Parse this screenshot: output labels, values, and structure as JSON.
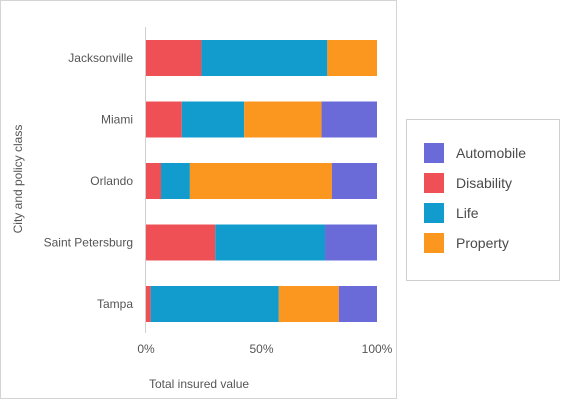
{
  "chart_data": {
    "type": "bar",
    "orientation": "horizontal",
    "stacked": "percent",
    "categories": [
      "Jacksonville",
      "Miami",
      "Orlando",
      "Saint Petersburg",
      "Tampa"
    ],
    "series": [
      {
        "name": "Disability",
        "color": "#ef5056",
        "values": [
          24,
          15.5,
          6.5,
          30,
          2
        ]
      },
      {
        "name": "Life",
        "color": "#119ccd",
        "values": [
          54.5,
          27,
          12.5,
          47.5,
          55.5
        ]
      },
      {
        "name": "Property",
        "color": "#fb961f",
        "values": [
          21.5,
          33.5,
          61.5,
          0,
          26
        ]
      },
      {
        "name": "Automobile",
        "color": "#6a6bd8",
        "values": [
          0,
          24,
          19.5,
          22.5,
          16.5
        ]
      }
    ],
    "legend_order": [
      "Automobile",
      "Disability",
      "Life",
      "Property"
    ],
    "xlabel": "Total insured value",
    "ylabel": "City and policy class",
    "xticks": [
      "0%",
      "50%",
      "100%"
    ],
    "xlim": [
      0,
      100
    ],
    "legend_position": "right",
    "grid": false
  }
}
